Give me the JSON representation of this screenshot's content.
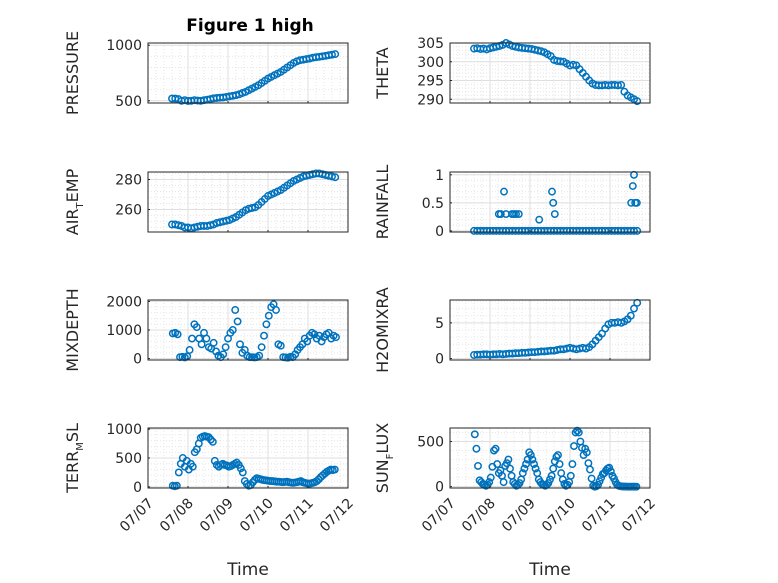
{
  "title": "Figure 1 high",
  "chart_data": [
    {
      "type": "scatter",
      "ylabel": "PRESSURE",
      "ylim": [
        480,
        1020
      ],
      "yticks": [
        500,
        1000
      ],
      "ytick_labels": [
        "500",
        "1000"
      ],
      "x": [
        0.6,
        0.68,
        0.76,
        0.84,
        0.92,
        1.0,
        1.08,
        1.16,
        1.24,
        1.32,
        1.4,
        1.48,
        1.56,
        1.64,
        1.72,
        1.8,
        1.88,
        1.96,
        2.04,
        2.12,
        2.2,
        2.28,
        2.36,
        2.44,
        2.52,
        2.6,
        2.68,
        2.76,
        2.84,
        2.92,
        3.0,
        3.08,
        3.16,
        3.24,
        3.32,
        3.4,
        3.48,
        3.56,
        3.64,
        3.72,
        3.8,
        3.88,
        3.96,
        4.04,
        4.12,
        4.2,
        4.28,
        4.36,
        4.44,
        4.52,
        4.6,
        4.68
      ],
      "y": [
        520,
        520,
        515,
        500,
        505,
        498,
        500,
        505,
        502,
        500,
        505,
        510,
        515,
        522,
        525,
        528,
        530,
        535,
        540,
        545,
        550,
        558,
        570,
        580,
        595,
        610,
        625,
        640,
        660,
        680,
        700,
        715,
        730,
        745,
        760,
        780,
        800,
        820,
        840,
        855,
        865,
        870,
        875,
        880,
        888,
        892,
        896,
        900,
        905,
        910,
        915,
        920
      ],
      "marker": "circle",
      "color": "#0072BD"
    },
    {
      "type": "scatter",
      "ylabel": "THETA",
      "ylim": [
        289,
        305
      ],
      "yticks": [
        290,
        295,
        300,
        305
      ],
      "ytick_labels": [
        "290",
        "295",
        "300",
        "305"
      ],
      "x": [
        0.6,
        0.68,
        0.76,
        0.84,
        0.92,
        1.0,
        1.08,
        1.16,
        1.24,
        1.32,
        1.4,
        1.48,
        1.56,
        1.64,
        1.72,
        1.8,
        1.88,
        1.96,
        2.04,
        2.12,
        2.2,
        2.28,
        2.36,
        2.44,
        2.52,
        2.6,
        2.68,
        2.76,
        2.84,
        2.92,
        3.0,
        3.08,
        3.16,
        3.24,
        3.32,
        3.4,
        3.48,
        3.56,
        3.64,
        3.72,
        3.8,
        3.88,
        3.96,
        4.04,
        4.12,
        4.2,
        4.28,
        4.36,
        4.44,
        4.52,
        4.6,
        4.68
      ],
      "y": [
        303.5,
        303.6,
        303.4,
        303.5,
        303.3,
        303.6,
        303.8,
        304.0,
        304.2,
        304.5,
        305.0,
        304.6,
        304.2,
        304.0,
        303.8,
        303.7,
        303.6,
        303.5,
        303.4,
        303.2,
        303.0,
        302.8,
        302.5,
        302.0,
        301.5,
        300.5,
        300.2,
        300.1,
        300.0,
        299.5,
        299.0,
        299.2,
        299.0,
        298.0,
        297.0,
        296.0,
        295.0,
        294.2,
        293.8,
        293.7,
        293.7,
        293.8,
        293.7,
        293.8,
        293.8,
        293.7,
        293.8,
        292.0,
        291.0,
        290.5,
        290.0,
        289.5
      ],
      "marker": "circle",
      "color": "#0072BD"
    },
    {
      "type": "scatter",
      "ylabel": "AIR_TEMP",
      "ylabel_main": "AIR",
      "ylabel_sub": "T",
      "ylabel_rest": "EMP",
      "ylim": [
        245,
        285
      ],
      "yticks": [
        260,
        280
      ],
      "ytick_labels": [
        "260",
        "280"
      ],
      "x": [
        0.6,
        0.68,
        0.76,
        0.84,
        0.92,
        1.0,
        1.08,
        1.16,
        1.24,
        1.32,
        1.4,
        1.48,
        1.56,
        1.64,
        1.72,
        1.8,
        1.88,
        1.96,
        2.04,
        2.12,
        2.2,
        2.28,
        2.36,
        2.44,
        2.52,
        2.6,
        2.68,
        2.76,
        2.84,
        2.92,
        3.0,
        3.08,
        3.16,
        3.24,
        3.32,
        3.4,
        3.48,
        3.56,
        3.64,
        3.72,
        3.8,
        3.88,
        3.96,
        4.04,
        4.12,
        4.2,
        4.28,
        4.36,
        4.44,
        4.52,
        4.6,
        4.68
      ],
      "y": [
        250.0,
        250.0,
        249.5,
        249.0,
        248.0,
        248.0,
        247.5,
        248.0,
        248.5,
        249.0,
        249.0,
        249.0,
        249.5,
        250.0,
        251.0,
        251.5,
        252.0,
        252.5,
        253.0,
        254.0,
        255.0,
        256.5,
        258.0,
        259.5,
        260.5,
        261.0,
        261.5,
        263.0,
        265.0,
        267.0,
        269.0,
        270.0,
        271.0,
        272.0,
        273.0,
        274.5,
        276.0,
        277.5,
        279.0,
        280.0,
        281.0,
        282.0,
        282.5,
        283.0,
        283.5,
        284.0,
        284.0,
        283.5,
        283.0,
        282.5,
        282.0,
        281.5
      ],
      "marker": "circle",
      "color": "#0072BD"
    },
    {
      "type": "scatter",
      "ylabel": "RAINFALL",
      "ylim": [
        -0.02,
        1.05
      ],
      "yticks": [
        0,
        0.5,
        1
      ],
      "ytick_labels": [
        "0",
        "0.5",
        "1"
      ],
      "x": [
        0.6,
        0.68,
        0.76,
        0.84,
        0.92,
        1.0,
        1.08,
        1.16,
        1.24,
        1.32,
        1.4,
        1.48,
        1.56,
        1.64,
        1.72,
        1.8,
        1.88,
        1.96,
        2.04,
        2.12,
        2.2,
        2.28,
        2.36,
        2.44,
        2.52,
        2.6,
        2.68,
        2.76,
        2.84,
        2.92,
        3.0,
        3.08,
        3.16,
        3.24,
        3.32,
        3.4,
        3.48,
        3.56,
        3.64,
        3.72,
        3.8,
        3.88,
        3.96,
        4.04,
        4.12,
        4.2,
        4.28,
        4.36,
        4.44,
        4.52,
        4.6,
        4.68,
        1.27,
        1.35,
        1.4,
        1.55,
        1.6,
        1.65,
        1.72,
        1.22,
        2.23,
        2.55,
        2.58,
        2.62,
        4.53,
        4.57,
        4.6,
        4.63,
        4.67
      ],
      "y": [
        0,
        0,
        0,
        0,
        0,
        0,
        0,
        0,
        0,
        0,
        0,
        0,
        0,
        0,
        0,
        0,
        0,
        0,
        0,
        0,
        0,
        0,
        0,
        0,
        0,
        0,
        0,
        0,
        0,
        0,
        0,
        0,
        0,
        0,
        0,
        0,
        0,
        0,
        0,
        0,
        0,
        0,
        0,
        0,
        0,
        0,
        0,
        0,
        0,
        0,
        0,
        0,
        0.3,
        0.7,
        0.3,
        0.3,
        0.3,
        0.3,
        0.3,
        0.3,
        0.2,
        0.7,
        0.5,
        0.3,
        0.5,
        0.8,
        1.0,
        0.5,
        0.5
      ],
      "marker": "circle",
      "color": "#0072BD"
    },
    {
      "type": "scatter",
      "ylabel": "MIXDEPTH",
      "ylim": [
        -50,
        2050
      ],
      "yticks": [
        0,
        1000,
        2000
      ],
      "ytick_labels": [
        "0",
        "1000",
        "2000"
      ],
      "x": [
        0.62,
        0.68,
        0.74,
        0.8,
        0.86,
        0.92,
        0.98,
        1.04,
        1.1,
        1.16,
        1.22,
        1.28,
        1.34,
        1.4,
        1.46,
        1.52,
        1.58,
        1.64,
        1.7,
        1.76,
        1.82,
        1.88,
        1.94,
        2.0,
        2.06,
        2.12,
        2.18,
        2.24,
        2.3,
        2.36,
        2.42,
        2.48,
        2.54,
        2.6,
        2.66,
        2.72,
        2.78,
        2.84,
        2.9,
        2.96,
        3.02,
        3.08,
        3.14,
        3.2,
        3.26,
        3.32,
        3.38,
        3.44,
        3.5,
        3.56,
        3.62,
        3.68,
        3.74,
        3.8,
        3.86,
        3.92,
        3.98,
        4.04,
        4.1,
        4.16,
        4.22,
        4.28,
        4.34,
        4.4,
        4.46,
        4.52,
        4.58,
        4.64,
        4.7
      ],
      "y": [
        880,
        900,
        850,
        50,
        60,
        40,
        80,
        300,
        700,
        1200,
        1100,
        700,
        500,
        900,
        700,
        400,
        350,
        550,
        250,
        100,
        50,
        150,
        400,
        700,
        900,
        1000,
        1700,
        1300,
        500,
        200,
        300,
        100,
        50,
        50,
        40,
        50,
        100,
        400,
        800,
        1200,
        1500,
        1800,
        1900,
        1700,
        500,
        450,
        50,
        40,
        30,
        60,
        50,
        150,
        300,
        400,
        500,
        700,
        600,
        800,
        900,
        850,
        700,
        800,
        600,
        750,
        850,
        900,
        700,
        800,
        750
      ],
      "marker": "circle",
      "color": "#0072BD"
    },
    {
      "type": "scatter",
      "ylabel": "H2OMIXRA",
      "ylim": [
        -0.2,
        8.2
      ],
      "yticks": [
        0,
        5
      ],
      "ytick_labels": [
        "0",
        "5"
      ],
      "x": [
        0.6,
        0.68,
        0.76,
        0.84,
        0.92,
        1.0,
        1.08,
        1.16,
        1.24,
        1.32,
        1.4,
        1.48,
        1.56,
        1.64,
        1.72,
        1.8,
        1.88,
        1.96,
        2.04,
        2.12,
        2.2,
        2.28,
        2.36,
        2.44,
        2.52,
        2.6,
        2.68,
        2.76,
        2.84,
        2.92,
        3.0,
        3.08,
        3.16,
        3.24,
        3.32,
        3.4,
        3.48,
        3.56,
        3.64,
        3.72,
        3.8,
        3.88,
        3.96,
        4.04,
        4.12,
        4.2,
        4.28,
        4.36,
        4.44,
        4.52,
        4.6,
        4.68
      ],
      "y": [
        0.5,
        0.55,
        0.55,
        0.6,
        0.6,
        0.55,
        0.6,
        0.6,
        0.65,
        0.6,
        0.65,
        0.7,
        0.7,
        0.75,
        0.75,
        0.8,
        0.8,
        0.85,
        0.9,
        0.9,
        0.95,
        1.0,
        1.0,
        1.05,
        1.1,
        1.1,
        1.2,
        1.3,
        1.3,
        1.4,
        1.5,
        1.4,
        1.3,
        1.4,
        1.5,
        1.4,
        1.6,
        2.0,
        2.5,
        3.0,
        3.5,
        4.2,
        4.8,
        5.0,
        5.0,
        5.1,
        5.0,
        5.2,
        5.5,
        6.0,
        7.0,
        7.8
      ],
      "marker": "circle",
      "color": "#0072BD"
    },
    {
      "type": "scatter",
      "ylabel": "TERR_MSL",
      "ylabel_main": "TERR",
      "ylabel_sub": "M",
      "ylabel_rest": "SL",
      "ylim": [
        -20,
        1020
      ],
      "yticks": [
        0,
        500,
        1000
      ],
      "ytick_labels": [
        "0",
        "500",
        "1000"
      ],
      "x": [
        0.62,
        0.67,
        0.72,
        0.77,
        0.82,
        0.87,
        0.92,
        0.97,
        1.02,
        1.07,
        1.12,
        1.17,
        1.22,
        1.27,
        1.32,
        1.37,
        1.42,
        1.47,
        1.52,
        1.57,
        1.62,
        1.67,
        1.72,
        1.77,
        1.82,
        1.87,
        1.92,
        1.97,
        2.02,
        2.07,
        2.12,
        2.17,
        2.22,
        2.27,
        2.32,
        2.37,
        2.42,
        2.47,
        2.52,
        2.57,
        2.62,
        2.67,
        2.72,
        2.77,
        2.82,
        2.87,
        2.92,
        2.97,
        3.02,
        3.07,
        3.12,
        3.17,
        3.22,
        3.27,
        3.32,
        3.37,
        3.42,
        3.47,
        3.52,
        3.57,
        3.62,
        3.67,
        3.72,
        3.77,
        3.82,
        3.87,
        3.92,
        3.97,
        4.02,
        4.07,
        4.12,
        4.17,
        4.22,
        4.27,
        4.32,
        4.37,
        4.42,
        4.47,
        4.52,
        4.57,
        4.62,
        4.67
      ],
      "y": [
        20,
        10,
        20,
        250,
        400,
        500,
        350,
        450,
        300,
        400,
        350,
        600,
        650,
        750,
        850,
        870,
        880,
        870,
        860,
        820,
        780,
        450,
        380,
        350,
        380,
        400,
        380,
        370,
        350,
        360,
        380,
        400,
        420,
        380,
        320,
        250,
        100,
        50,
        20,
        30,
        80,
        120,
        150,
        140,
        130,
        120,
        115,
        110,
        105,
        100,
        100,
        95,
        90,
        90,
        85,
        80,
        85,
        90,
        80,
        75,
        70,
        75,
        80,
        90,
        100,
        80,
        70,
        60,
        55,
        60,
        70,
        80,
        100,
        130,
        170,
        200,
        230,
        260,
        280,
        300,
        290,
        300
      ],
      "marker": "circle",
      "color": "#0072BD"
    },
    {
      "type": "scatter",
      "ylabel": "SUN_FLUX",
      "ylabel_main": "SUN",
      "ylabel_sub": "F",
      "ylabel_rest": "LUX",
      "ylim": [
        -15,
        650
      ],
      "yticks": [
        0,
        500
      ],
      "ytick_labels": [
        "0",
        "500"
      ],
      "x": [
        0.62,
        0.66,
        0.7,
        0.74,
        0.78,
        0.82,
        0.86,
        0.9,
        0.94,
        0.98,
        1.02,
        1.06,
        1.1,
        1.14,
        1.18,
        1.22,
        1.26,
        1.3,
        1.34,
        1.38,
        1.42,
        1.46,
        1.5,
        1.54,
        1.58,
        1.62,
        1.66,
        1.7,
        1.74,
        1.78,
        1.82,
        1.86,
        1.9,
        1.94,
        1.98,
        2.02,
        2.06,
        2.1,
        2.14,
        2.18,
        2.22,
        2.26,
        2.3,
        2.34,
        2.38,
        2.42,
        2.46,
        2.5,
        2.54,
        2.58,
        2.62,
        2.66,
        2.7,
        2.74,
        2.78,
        2.82,
        2.86,
        2.9,
        2.94,
        2.98,
        3.02,
        3.06,
        3.1,
        3.14,
        3.18,
        3.22,
        3.26,
        3.3,
        3.34,
        3.38,
        3.42,
        3.46,
        3.5,
        3.54,
        3.58,
        3.62,
        3.66,
        3.7,
        3.74,
        3.78,
        3.82,
        3.86,
        3.9,
        3.94,
        3.98,
        4.02,
        4.06,
        4.1,
        4.14,
        4.18,
        4.22,
        4.26,
        4.3,
        4.34,
        4.38,
        4.42,
        4.46,
        4.5,
        4.54,
        4.58,
        4.62,
        4.66
      ],
      "y": [
        580,
        420,
        230,
        70,
        50,
        30,
        20,
        10,
        20,
        50,
        100,
        220,
        400,
        420,
        250,
        150,
        180,
        120,
        50,
        230,
        260,
        300,
        200,
        120,
        50,
        30,
        10,
        20,
        40,
        80,
        150,
        200,
        250,
        300,
        380,
        350,
        300,
        250,
        200,
        150,
        80,
        50,
        30,
        20,
        10,
        20,
        40,
        80,
        120,
        200,
        280,
        330,
        350,
        250,
        150,
        80,
        30,
        10,
        20,
        50,
        120,
        250,
        450,
        600,
        620,
        600,
        500,
        430,
        350,
        420,
        380,
        260,
        190,
        90,
        10,
        0,
        5,
        20,
        60,
        100,
        140,
        150,
        180,
        200,
        210,
        170,
        120,
        90,
        50,
        20,
        10,
        5,
        2,
        1,
        1,
        0,
        0,
        0,
        0,
        0,
        0,
        0
      ],
      "marker": "circle",
      "color": "#0072BD"
    }
  ],
  "xaxis": {
    "xlabel": "Time",
    "xlim": [
      0,
      5
    ],
    "ticks": [
      0,
      1,
      2,
      3,
      4,
      5
    ],
    "tick_labels": [
      "07/07",
      "07/08",
      "07/09",
      "07/10",
      "07/11",
      "07/12"
    ]
  },
  "grid": true,
  "minor_grid": true,
  "colors": {
    "marker": "#0072BD",
    "axis": "#262626",
    "grid": "#dfdfdf",
    "minor_grid": "#e6e6e6"
  }
}
